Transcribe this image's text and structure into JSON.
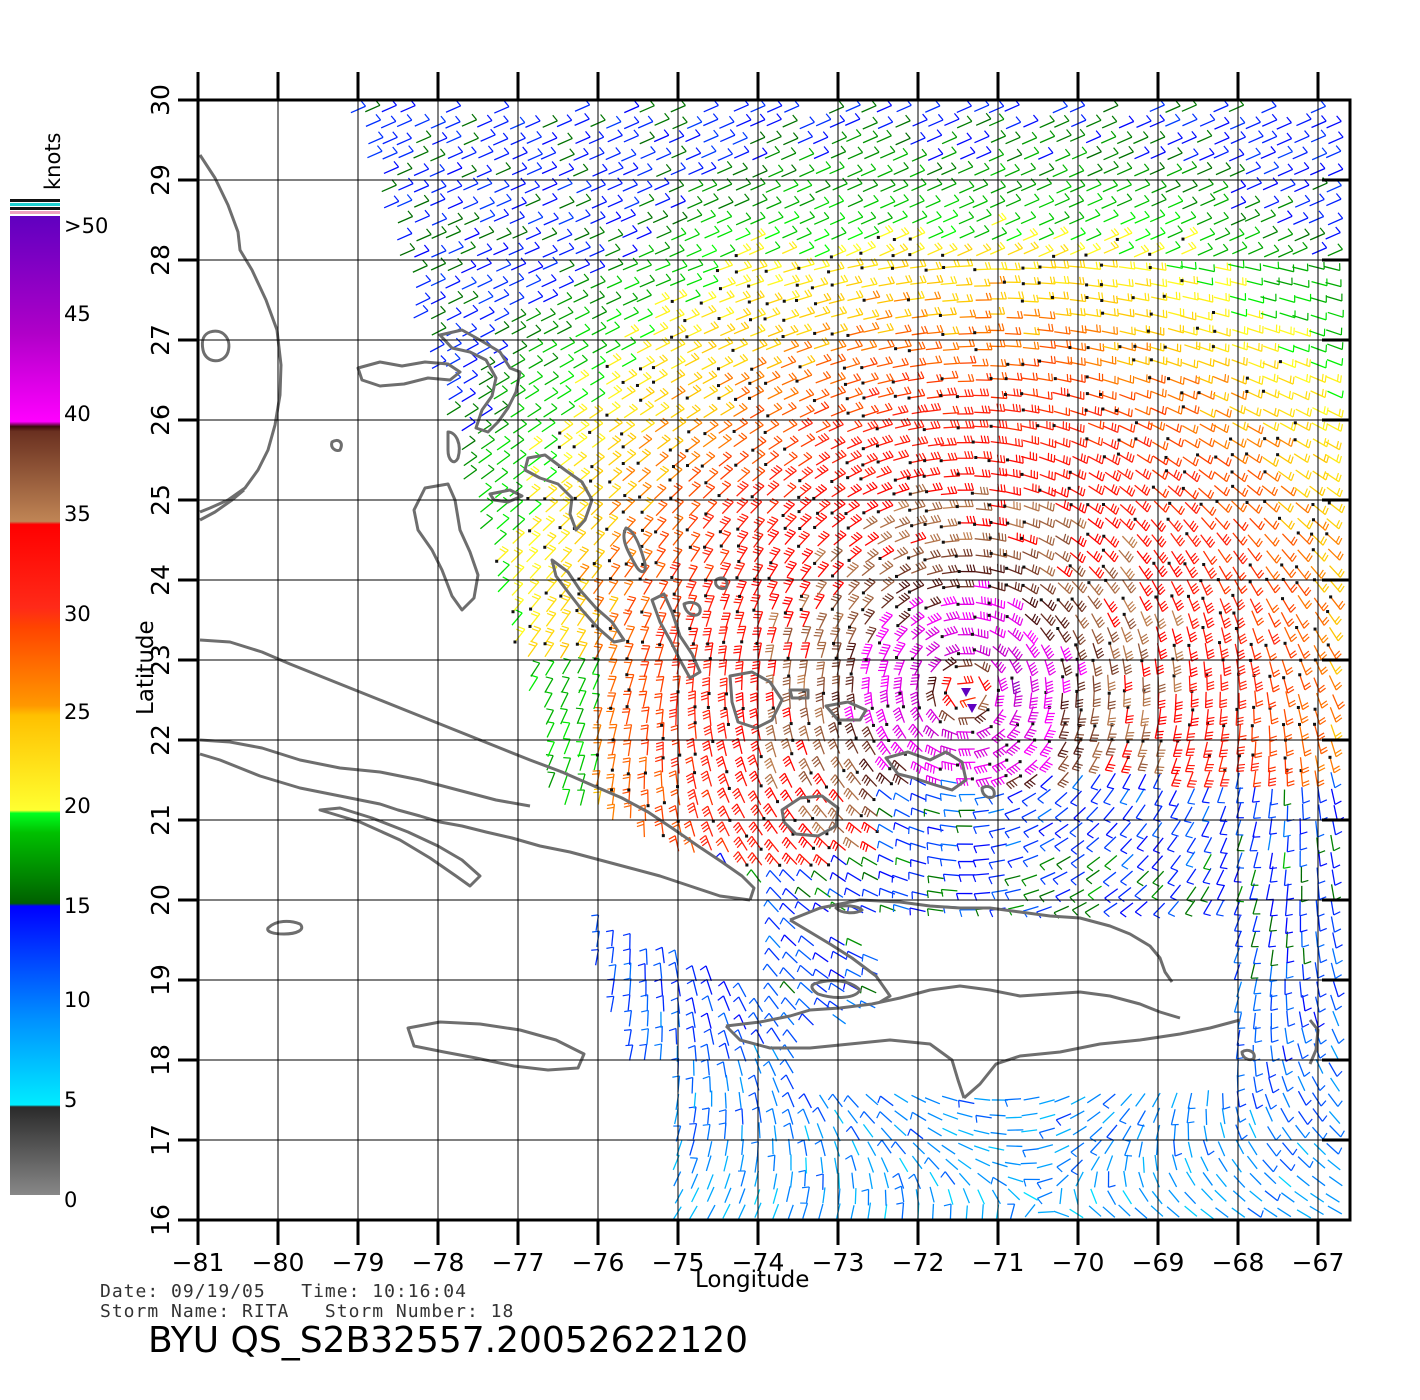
{
  "colorbar": {
    "unit_label": "knots",
    "labels": [
      ">50",
      "45",
      "40",
      "35",
      "30",
      "25",
      "20",
      "15",
      "10",
      "5",
      "0"
    ]
  },
  "axes": {
    "xlabel": "Longitude",
    "ylabel": "Latitude",
    "x_ticks": [
      "−81",
      "−80",
      "−79",
      "−78",
      "−77",
      "−76",
      "−75",
      "−74",
      "−73",
      "−72",
      "−71",
      "−70",
      "−69",
      "−68",
      "−67"
    ],
    "y_ticks": [
      "30",
      "29",
      "28",
      "27",
      "26",
      "25",
      "24",
      "23",
      "22",
      "21",
      "20",
      "19",
      "18",
      "17",
      "16"
    ]
  },
  "info": {
    "date_line": "Date: 09/19/05   Time: 10:16:04",
    "storm_line": "Storm Name: RITA   Storm Number: 18",
    "product_id": "BYU QS_S2B32557.20052622120"
  },
  "map": {
    "lon_range": [
      -81,
      -66.6
    ],
    "lat_range": [
      16,
      30
    ],
    "storm_center": [
      -71.4,
      22.6
    ],
    "swath_west_edge_lon": -79.2,
    "coast_color": "#6e6e6e"
  },
  "color_scale": {
    "bands": [
      {
        "min": 0,
        "max": 5,
        "colors": [
          "#888888",
          "#2a2a2a"
        ]
      },
      {
        "min": 5,
        "max": 10,
        "colors": [
          "#00e6ff",
          "#0080ff"
        ]
      },
      {
        "min": 10,
        "max": 15,
        "colors": [
          "#0080ff",
          "#0000ff"
        ]
      },
      {
        "min": 15,
        "max": 20,
        "colors": [
          "#006a00",
          "#00ff00"
        ]
      },
      {
        "min": 20,
        "max": 25,
        "colors": [
          "#ffff20",
          "#ffc000"
        ]
      },
      {
        "min": 25,
        "max": 30,
        "colors": [
          "#ff8a00",
          "#ff2a00"
        ]
      },
      {
        "min": 30,
        "max": 35,
        "colors": [
          "#ff2a10",
          "#ff0000"
        ]
      },
      {
        "min": 35,
        "max": 40,
        "colors": [
          "#c08050",
          "#4a1010"
        ]
      },
      {
        "min": 40,
        "max": 45,
        "colors": [
          "#ff00ff",
          "#c000c8"
        ]
      },
      {
        "min": 45,
        "max": 50,
        "colors": [
          "#a000c0",
          "#6000c0"
        ]
      }
    ]
  }
}
